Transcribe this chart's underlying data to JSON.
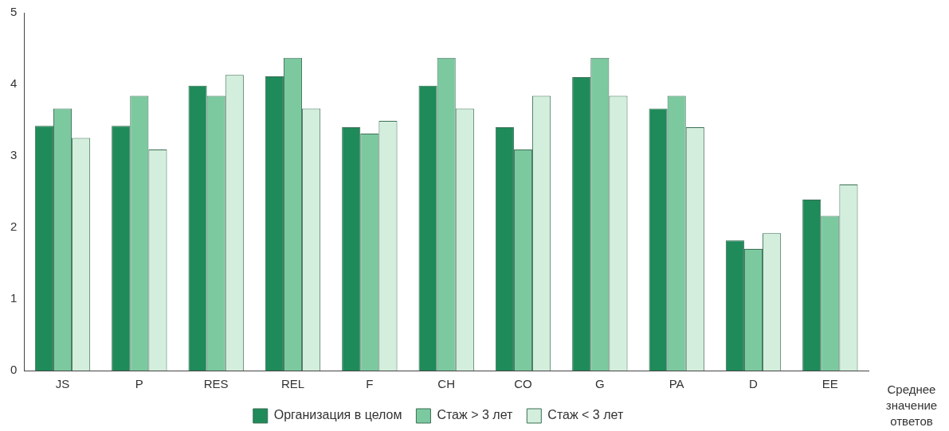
{
  "chart_data": {
    "type": "bar",
    "xlabel": "Среднее значение ответов",
    "categories": [
      "JS",
      "P",
      "RES",
      "REL",
      "F",
      "CH",
      "CO",
      "G",
      "PA",
      "D",
      "EE"
    ],
    "series": [
      {
        "name": "Организация в целом",
        "color": "#1f8a5a",
        "values": [
          3.42,
          3.42,
          3.98,
          4.11,
          3.4,
          3.98,
          3.4,
          4.1,
          3.66,
          1.82,
          2.39
        ]
      },
      {
        "name": "Стаж > 3 лет",
        "color": "#7cc9a0",
        "values": [
          3.66,
          3.84,
          3.84,
          4.37,
          3.31,
          4.37,
          3.09,
          4.37,
          3.84,
          1.7,
          2.16
        ]
      },
      {
        "name": "Стаж < 3 лет",
        "color": "#d3eedc",
        "values": [
          3.25,
          3.09,
          4.13,
          3.66,
          3.49,
          3.66,
          3.84,
          3.84,
          3.4,
          1.92,
          2.6
        ]
      }
    ],
    "ylim": [
      0,
      5
    ],
    "yticks": [
      0,
      1,
      2,
      3,
      4,
      5
    ],
    "grid": false,
    "legend": "bottom"
  }
}
